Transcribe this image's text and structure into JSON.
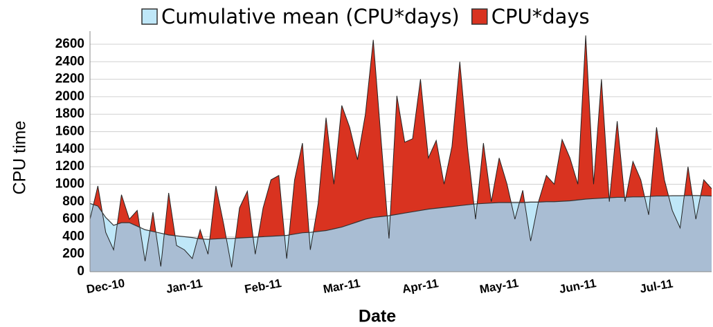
{
  "chart_data": {
    "type": "area",
    "xlabel": "Date",
    "ylabel": "CPU time",
    "categories": [
      null,
      null,
      "Dec-10",
      null,
      null,
      null,
      null,
      null,
      null,
      null,
      null,
      null,
      "Jan-11",
      null,
      null,
      null,
      null,
      null,
      null,
      null,
      null,
      null,
      "Feb-11",
      null,
      null,
      null,
      null,
      null,
      null,
      null,
      null,
      null,
      "Mar-11",
      null,
      null,
      null,
      null,
      null,
      null,
      null,
      null,
      null,
      "Apr-11",
      null,
      null,
      null,
      null,
      null,
      null,
      null,
      null,
      null,
      "May-11",
      null,
      null,
      null,
      null,
      null,
      null,
      null,
      null,
      null,
      "Jun-11",
      null,
      null,
      null,
      null,
      null,
      null,
      null,
      null,
      null,
      "Jul-11",
      null,
      null,
      null,
      null,
      null,
      null,
      null
    ],
    "series": [
      {
        "name": "Cumulative mean (CPU*days)",
        "color": "#bfe7f8",
        "values": [
          780,
          750,
          620,
          530,
          560,
          560,
          520,
          480,
          460,
          440,
          420,
          410,
          400,
          390,
          375,
          370,
          375,
          380,
          380,
          385,
          390,
          395,
          400,
          405,
          410,
          415,
          430,
          445,
          450,
          460,
          470,
          490,
          510,
          540,
          570,
          600,
          620,
          630,
          640,
          655,
          670,
          685,
          700,
          715,
          725,
          735,
          745,
          755,
          765,
          775,
          780,
          785,
          790,
          790,
          790,
          790,
          795,
          795,
          800,
          800,
          805,
          810,
          820,
          830,
          835,
          840,
          845,
          850,
          850,
          855,
          855,
          860,
          865,
          865,
          868,
          868,
          870,
          870,
          868,
          865
        ]
      },
      {
        "name": "CPU*days",
        "color": "#d93320",
        "values": [
          600,
          980,
          450,
          250,
          880,
          600,
          700,
          120,
          680,
          60,
          900,
          300,
          250,
          150,
          480,
          200,
          980,
          540,
          50,
          730,
          920,
          200,
          730,
          1050,
          1100,
          150,
          1050,
          1470,
          250,
          780,
          1760,
          1000,
          1900,
          1650,
          1280,
          1800,
          2650,
          1500,
          380,
          2010,
          1480,
          1520,
          2200,
          1300,
          1500,
          1000,
          1430,
          2400,
          1400,
          600,
          1470,
          800,
          1300,
          1000,
          600,
          930,
          350,
          800,
          1100,
          1000,
          1510,
          1300,
          1000,
          2700,
          1000,
          2200,
          800,
          1720,
          800,
          1260,
          1050,
          650,
          1650,
          1050,
          700,
          500,
          1200,
          600,
          1050,
          950
        ]
      }
    ],
    "overlap_color": "#a9bdd3",
    "ylim": [
      0,
      2750
    ],
    "yticks": [
      0,
      200,
      400,
      600,
      800,
      1000,
      1200,
      1400,
      1600,
      1800,
      2000,
      2200,
      2400,
      2600
    ],
    "grid": true
  }
}
